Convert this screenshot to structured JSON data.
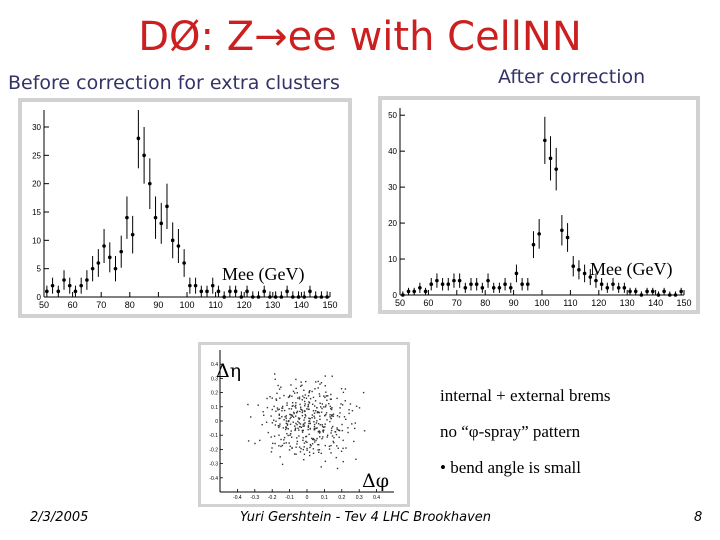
{
  "title": "DØ: Z→ee with CellNN",
  "left_caption": "Before correction for extra clusters",
  "right_caption": "After correction",
  "notes": [
    "internal + external brems",
    "no “φ-spray” pattern",
    "• bend angle is small"
  ],
  "footer": {
    "date": "2/3/2005",
    "author": "Yuri Gershtein - Tev 4 LHC Brookhaven",
    "page": "8"
  },
  "chart_data": [
    {
      "type": "scatter",
      "title": "",
      "xlabel": "Mee (GeV)",
      "ylabel": "",
      "xlim": [
        50,
        150
      ],
      "ylim": [
        0,
        33
      ],
      "xticks": [
        50,
        60,
        70,
        80,
        90,
        100,
        110,
        120,
        130,
        140,
        150
      ],
      "yticks": [
        0,
        5,
        10,
        15,
        20,
        25,
        30
      ],
      "errorbars": true,
      "x": [
        51,
        53,
        55,
        57,
        59,
        61,
        63,
        65,
        67,
        69,
        71,
        73,
        75,
        77,
        79,
        81,
        83,
        85,
        87,
        89,
        91,
        93,
        95,
        97,
        99,
        101,
        103,
        105,
        107,
        109,
        111,
        113,
        115,
        117,
        119,
        121,
        123,
        125,
        127,
        129,
        131,
        133,
        135,
        137,
        139,
        141,
        143,
        145,
        147,
        149
      ],
      "y": [
        1,
        2,
        1,
        3,
        2,
        1,
        2,
        3,
        5,
        6,
        9,
        7,
        5,
        8,
        14,
        11,
        28,
        25,
        20,
        14,
        13,
        16,
        10,
        9,
        6,
        2,
        2,
        1,
        1,
        2,
        1,
        0,
        1,
        1,
        0,
        1,
        0,
        0,
        1,
        0,
        0,
        0,
        1,
        0,
        0,
        0,
        1,
        0,
        0,
        0
      ]
    },
    {
      "type": "scatter",
      "title": "",
      "xlabel": "Mee (GeV)",
      "ylabel": "",
      "xlim": [
        50,
        150
      ],
      "ylim": [
        0,
        52
      ],
      "xticks": [
        50,
        60,
        70,
        80,
        90,
        100,
        110,
        120,
        130,
        140,
        150
      ],
      "yticks": [
        0,
        10,
        20,
        30,
        40,
        50
      ],
      "errorbars": true,
      "x": [
        51,
        53,
        55,
        57,
        59,
        61,
        63,
        65,
        67,
        69,
        71,
        73,
        75,
        77,
        79,
        81,
        83,
        85,
        87,
        89,
        91,
        93,
        95,
        97,
        99,
        101,
        103,
        105,
        107,
        109,
        111,
        113,
        115,
        117,
        119,
        121,
        123,
        125,
        127,
        129,
        131,
        133,
        135,
        137,
        139,
        141,
        143,
        145,
        147,
        149
      ],
      "y": [
        0,
        1,
        1,
        2,
        1,
        3,
        4,
        3,
        3,
        4,
        4,
        2,
        3,
        3,
        2,
        4,
        2,
        2,
        3,
        2,
        6,
        3,
        3,
        14,
        17,
        43,
        38,
        35,
        18,
        16,
        8,
        7,
        6,
        5,
        4,
        3,
        2,
        3,
        2,
        2,
        1,
        1,
        0,
        1,
        1,
        0,
        1,
        0,
        0,
        1
      ]
    },
    {
      "type": "scatter",
      "title": "",
      "xlabel": "Δφ",
      "ylabel": "Δη",
      "xlim": [
        -0.5,
        0.5
      ],
      "ylim": [
        -0.5,
        0.5
      ],
      "xticks": [
        -0.4,
        -0.3,
        -0.2,
        -0.1,
        0,
        0.1,
        0.2,
        0.3,
        0.4
      ],
      "yticks": [
        -0.4,
        -0.3,
        -0.2,
        -0.1,
        0,
        0.1,
        0.2,
        0.3,
        0.4
      ],
      "pattern": "scattered small dots centred at (0, 0)"
    }
  ]
}
